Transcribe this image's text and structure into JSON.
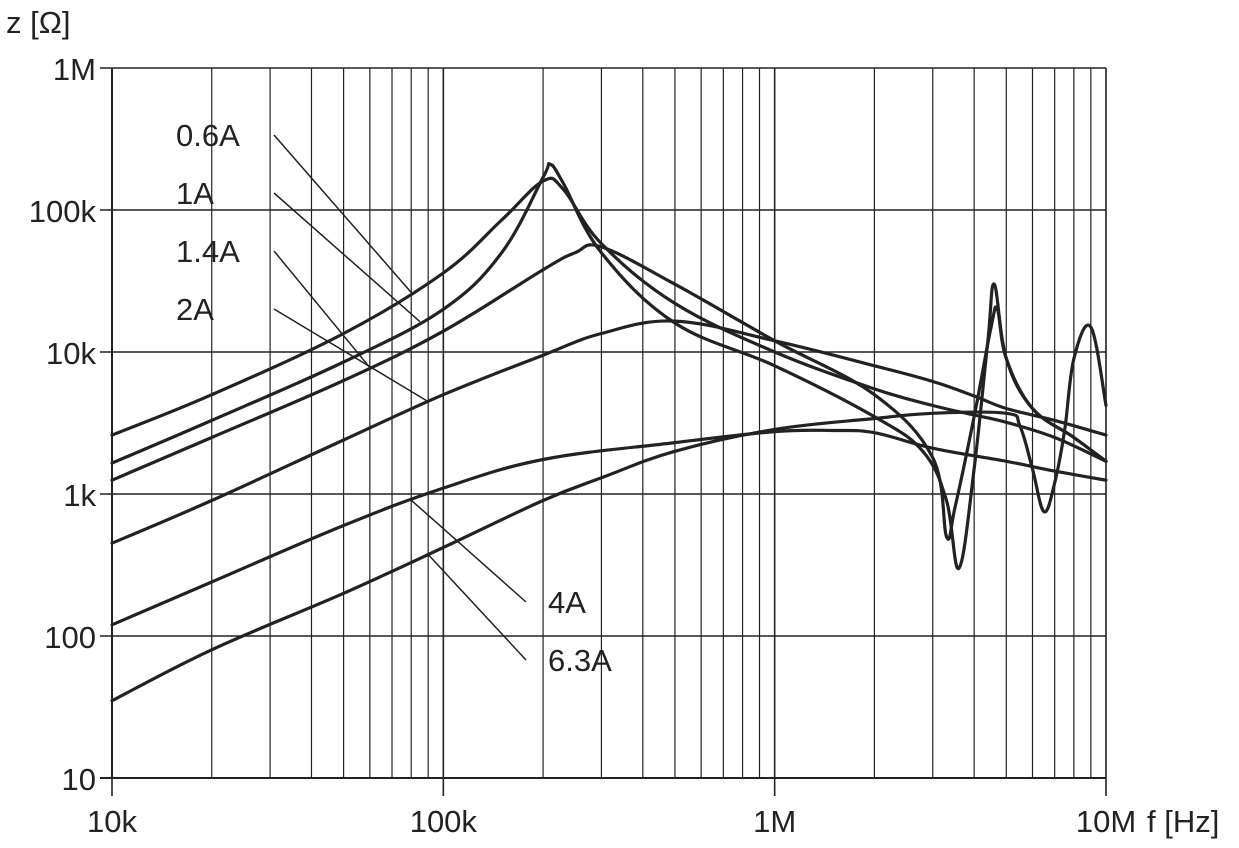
{
  "chart_data": {
    "type": "line",
    "xlabel": "f [Hz]",
    "ylabel": "z [Ω]",
    "x_scale": "log",
    "y_scale": "log",
    "xlim": [
      10000,
      10000000
    ],
    "ylim": [
      10,
      1000000
    ],
    "grid": true,
    "x_ticks": [
      {
        "value": 10000,
        "label": "10k"
      },
      {
        "value": 100000,
        "label": "100k"
      },
      {
        "value": 1000000,
        "label": "1M"
      },
      {
        "value": 10000000,
        "label": "10M"
      }
    ],
    "y_ticks": [
      {
        "value": 10,
        "label": "10"
      },
      {
        "value": 100,
        "label": "100"
      },
      {
        "value": 1000,
        "label": "1k"
      },
      {
        "value": 10000,
        "label": "10k"
      },
      {
        "value": 100000,
        "label": "100k"
      },
      {
        "value": 1000000,
        "label": "1M"
      }
    ],
    "line_color": "#222222",
    "grid_color": "#222222",
    "series": [
      {
        "name": "0.6A",
        "x": [
          10000,
          20000,
          50000,
          100000,
          150000,
          200000,
          230000,
          300000,
          500000,
          1000000,
          2000000,
          3000000,
          4000000,
          5000000,
          7000000,
          10000000
        ],
        "y": [
          2600,
          5000,
          13500,
          36000,
          85000,
          160000,
          140000,
          58000,
          22000,
          10000,
          5500,
          4200,
          3600,
          3200,
          2500,
          1700
        ]
      },
      {
        "name": "1A",
        "x": [
          10000,
          20000,
          50000,
          100000,
          150000,
          200000,
          210000,
          230000,
          300000,
          500000,
          1000000,
          2000000,
          2800000,
          3300000,
          3600000,
          4000000,
          4400000,
          4600000,
          5000000,
          6000000,
          8000000,
          10000000
        ],
        "y": [
          1650,
          3300,
          8500,
          20000,
          50000,
          170000,
          210000,
          155000,
          50000,
          16000,
          8000,
          3500,
          2000,
          900,
          300,
          1500,
          12000,
          30000,
          9000,
          4000,
          2500,
          1700
        ]
      },
      {
        "name": "1.4A",
        "x": [
          10000,
          20000,
          50000,
          100000,
          200000,
          250000,
          300000,
          500000,
          1000000,
          2000000,
          3000000,
          3300000,
          3500000,
          4000000,
          4500000,
          4700000,
          5000000,
          6000000,
          8000000,
          10000000
        ],
        "y": [
          1250,
          2500,
          6300,
          14000,
          38000,
          50000,
          55000,
          30000,
          12000,
          5000,
          1800,
          500,
          800,
          3500,
          15000,
          20000,
          9000,
          4000,
          2500,
          1700
        ]
      },
      {
        "name": "2A",
        "x": [
          10000,
          20000,
          50000,
          100000,
          200000,
          300000,
          500000,
          1000000,
          2000000,
          3000000,
          4000000,
          5000000,
          7000000,
          10000000
        ],
        "y": [
          450,
          900,
          2400,
          5000,
          9500,
          13500,
          16500,
          12000,
          8000,
          6200,
          4900,
          4000,
          3300,
          2600
        ]
      },
      {
        "name": "4A",
        "x": [
          10000,
          20000,
          50000,
          100000,
          200000,
          500000,
          1000000,
          1500000,
          2000000,
          3000000,
          5000000,
          7000000,
          10000000
        ],
        "y": [
          120,
          240,
          600,
          1100,
          1750,
          2300,
          2750,
          2800,
          2700,
          2100,
          1700,
          1450,
          1250
        ]
      },
      {
        "name": "6.3A",
        "x": [
          10000,
          20000,
          50000,
          100000,
          200000,
          300000,
          500000,
          1000000,
          2000000,
          3000000,
          5000000,
          5500000,
          6000000,
          6500000,
          7000000,
          7500000,
          8000000,
          9000000,
          10000000
        ],
        "y": [
          35,
          80,
          200,
          420,
          900,
          1300,
          2000,
          2850,
          3400,
          3700,
          3700,
          3000,
          1500,
          750,
          1200,
          2800,
          9000,
          15000,
          4200
        ]
      }
    ],
    "annotations": [
      {
        "text": "0.6A",
        "series": "0.6A",
        "side": "left"
      },
      {
        "text": "1A",
        "series": "1A",
        "side": "left"
      },
      {
        "text": "1.4A",
        "series": "1.4A",
        "side": "left"
      },
      {
        "text": "2A",
        "series": "2A",
        "side": "left"
      },
      {
        "text": "4A",
        "series": "4A",
        "side": "bottom"
      },
      {
        "text": "6.3A",
        "series": "6.3A",
        "side": "bottom"
      }
    ]
  }
}
